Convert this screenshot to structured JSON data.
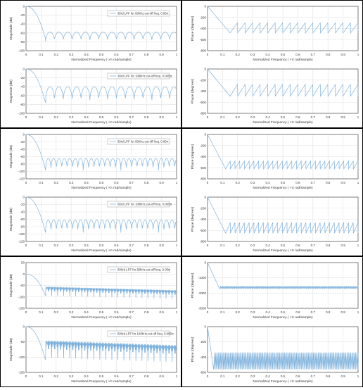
{
  "colors": {
    "line": "#7fb2dc",
    "axis": "#333333",
    "grid": "#e2e2e2",
    "legend_border": "#999999",
    "cell_border": "#000000"
  },
  "labels": {
    "mag_ylabel": "Magnitude (dB)",
    "phase_ylabel": "Phase (degrees)",
    "xlabel_main": "Normalized Frequency",
    "xlabel_units": "×π rad/sample)",
    "xlabel_paren": "("
  },
  "grid_on": true,
  "legend_placement": "top-right",
  "chart_data": [
    {
      "type": "line",
      "panel": "magnitude",
      "legend": "30rd LPF for 50kHz,cut-off freq. 0.05π",
      "x_ticks": [
        0,
        0.1,
        0.2,
        0.3,
        0.4,
        0.5,
        0.6,
        0.7,
        0.8,
        0.9,
        1
      ],
      "y_ticks": [
        0,
        -20,
        -40,
        -60,
        -80,
        -100
      ],
      "xlim": [
        0,
        1
      ],
      "ylim": [
        -100,
        0
      ],
      "order": 30,
      "cutoff": 0.05,
      "sidelobe_db": -58,
      "null_db": -82
    },
    {
      "type": "line",
      "panel": "magnitude",
      "legend": "30rd LPF for 100kHz,cut-off freq. 0.005π",
      "x_ticks": [
        0,
        0.1,
        0.2,
        0.3,
        0.4,
        0.5,
        0.6,
        0.7,
        0.8,
        0.9,
        1
      ],
      "y_ticks": [
        0,
        -20,
        -40,
        -60,
        -80,
        -100
      ],
      "xlim": [
        0,
        1
      ],
      "ylim": [
        -100,
        0
      ],
      "order": 30,
      "cutoff": 0.005,
      "sidelobe_db": -40,
      "null_db": -85
    },
    {
      "type": "line",
      "panel": "phase",
      "order": 30,
      "x_ticks": [
        0,
        0.1,
        0.2,
        0.3,
        0.4,
        0.5,
        0.6,
        0.7,
        0.8,
        0.9,
        1
      ],
      "y_ticks": [
        0,
        -200,
        -400,
        -600,
        -800
      ],
      "xlim": [
        0,
        1
      ],
      "ylim": [
        -800,
        0
      ],
      "start_drop": 0.15,
      "low": -480,
      "high": -300
    },
    {
      "type": "line",
      "panel": "phase",
      "order": 30,
      "x_ticks": [
        0,
        0.1,
        0.2,
        0.3,
        0.4,
        0.5,
        0.6,
        0.7,
        0.8,
        0.9,
        1
      ],
      "y_ticks": [
        0,
        -200,
        -400,
        -600,
        -800
      ],
      "xlim": [
        0,
        1
      ],
      "ylim": [
        -800,
        0
      ],
      "start_drop": 0.15,
      "low": -490,
      "high": -280
    },
    {
      "type": "line",
      "panel": "magnitude",
      "legend": "50rd LPF for 50kHz,cut-off freq. 0.05π",
      "x_ticks": [
        0,
        0.1,
        0.2,
        0.3,
        0.4,
        0.5,
        0.6,
        0.7,
        0.8,
        0.9,
        1
      ],
      "y_ticks": [
        0,
        -20,
        -40,
        -60,
        -80,
        -100,
        -120
      ],
      "xlim": [
        0,
        1
      ],
      "ylim": [
        -120,
        0
      ],
      "order": 50,
      "cutoff": 0.05,
      "sidelobe_db": -65,
      "null_db": -105
    },
    {
      "type": "line",
      "panel": "magnitude",
      "legend": "50rd LPF for 100kHz,cut-off freq. 0.005π",
      "x_ticks": [
        0,
        0.1,
        0.2,
        0.3,
        0.4,
        0.5,
        0.6,
        0.7,
        0.8,
        0.9,
        1
      ],
      "y_ticks": [
        0,
        -20,
        -40,
        -60,
        -80,
        -100,
        -120
      ],
      "xlim": [
        0,
        1
      ],
      "ylim": [
        -120,
        0
      ],
      "order": 50,
      "cutoff": 0.005,
      "sidelobe_db": -62,
      "null_db": -105
    },
    {
      "type": "line",
      "panel": "phase",
      "order": 50,
      "x_ticks": [
        0,
        0.1,
        0.2,
        0.3,
        0.4,
        0.5,
        0.6,
        0.7,
        0.8,
        0.9,
        1
      ],
      "y_ticks": [
        0,
        -200,
        -400,
        -600,
        -800
      ],
      "xlim": [
        0,
        1
      ],
      "ylim": [
        -800,
        0
      ],
      "start_drop": 0.12,
      "low": -620,
      "high": -480
    },
    {
      "type": "line",
      "panel": "phase",
      "order": 50,
      "x_ticks": [
        0,
        0.1,
        0.2,
        0.3,
        0.4,
        0.5,
        0.6,
        0.7,
        0.8,
        0.9,
        1
      ],
      "y_ticks": [
        0,
        -200,
        -400,
        -600,
        -800
      ],
      "xlim": [
        0,
        1
      ],
      "ylim": [
        -800,
        0
      ],
      "start_drop": 0.12,
      "low": -650,
      "high": -460
    },
    {
      "type": "line",
      "panel": "magnitude",
      "legend": "500rd LPF for 50kHz,cut-off freq. 0.05π",
      "x_ticks": [
        0,
        0.1,
        0.2,
        0.3,
        0.4,
        0.5,
        0.6,
        0.7,
        0.8,
        0.9,
        1
      ],
      "y_ticks": [
        50,
        0,
        -50,
        -100,
        -150
      ],
      "xlim": [
        0,
        1
      ],
      "ylim": [
        -150,
        50
      ],
      "order": 500,
      "cutoff": 0.05,
      "sidelobe_db": -55,
      "null_db": -105
    },
    {
      "type": "line",
      "panel": "magnitude",
      "legend": "500rd LPF for 100kHz,cut-off freq. 0.005π",
      "x_ticks": [
        0,
        0.1,
        0.2,
        0.3,
        0.4,
        0.5,
        0.6,
        0.7,
        0.8,
        0.9,
        1
      ],
      "y_ticks": [
        0,
        -50,
        -100,
        -150
      ],
      "xlim": [
        0,
        1
      ],
      "ylim": [
        -150,
        0
      ],
      "order": 500,
      "cutoff": 0.005,
      "sidelobe_db": -45,
      "null_db": -120
    },
    {
      "type": "line",
      "panel": "phase",
      "order": 500,
      "x_ticks": [
        0,
        0.1,
        0.2,
        0.3,
        0.4,
        0.5,
        0.6,
        0.7,
        0.8,
        0.9,
        1
      ],
      "y_ticks": [
        0,
        -1000,
        -2000,
        -3000
      ],
      "xlim": [
        0,
        1
      ],
      "ylim": [
        -3000,
        0
      ],
      "start_drop": 0.08,
      "low": -1720,
      "high": -1540
    },
    {
      "type": "line",
      "panel": "phase",
      "order": 500,
      "x_ticks": [
        0,
        0.1,
        0.2,
        0.3,
        0.4,
        0.5,
        0.6,
        0.7,
        0.8,
        0.9,
        1
      ],
      "y_ticks": [
        0,
        -200,
        -400,
        -600
      ],
      "xlim": [
        0,
        1
      ],
      "ylim": [
        -600,
        0
      ],
      "start_drop": 0.04,
      "low": -560,
      "high": -340
    }
  ]
}
